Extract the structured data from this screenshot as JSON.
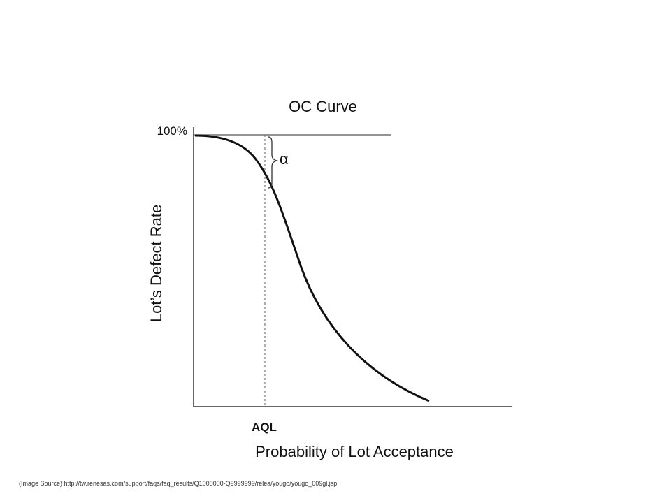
{
  "chart_data": {
    "type": "line",
    "title": "OC Curve",
    "xlabel": "Probability of Lot Acceptance",
    "ylabel": "Lot’s Defect Rate",
    "y_tick_label": "100%",
    "reference_label": "AQL",
    "alpha_label": "α",
    "grid": false,
    "legend": "none",
    "colors": {
      "curve": "#111111",
      "axes": "#333333",
      "reference_line": "#777777"
    }
  },
  "source_note": "(Image Source) http://tw.renesas.com/support/faqs/faq_results/Q1000000-Q9999999/relea/yougo/yougo_009gl.jsp"
}
